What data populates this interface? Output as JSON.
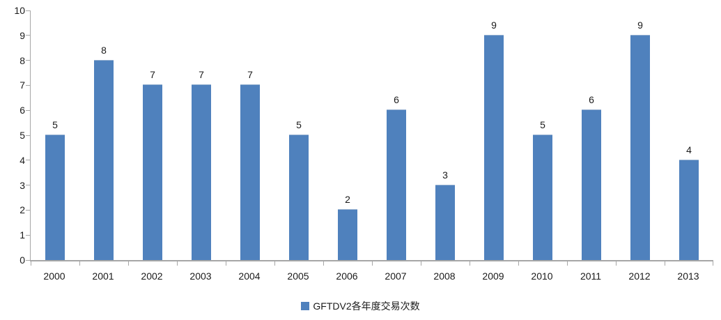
{
  "chart_data": {
    "type": "bar",
    "categories": [
      "2000",
      "2001",
      "2002",
      "2003",
      "2004",
      "2005",
      "2006",
      "2007",
      "2008",
      "2009",
      "2010",
      "2011",
      "2012",
      "2013"
    ],
    "values": [
      5,
      8,
      7,
      7,
      7,
      5,
      2,
      6,
      3,
      9,
      5,
      6,
      9,
      4
    ],
    "series_name": "GFTDV2各年度交易次数",
    "legend": {
      "label": "GFTDV2各年度交易次数",
      "position": "bottom"
    },
    "xlabel": "",
    "ylabel": "",
    "ylim": [
      0,
      10
    ],
    "y_ticks": [
      0,
      1,
      2,
      3,
      4,
      5,
      6,
      7,
      8,
      9,
      10
    ],
    "grid": false,
    "data_labels_shown": true,
    "bar_color": "#4F81BD",
    "axis_color": "#A6A6A6",
    "text_color": "#1a1a1a",
    "background_color": "#FFFFFF"
  }
}
